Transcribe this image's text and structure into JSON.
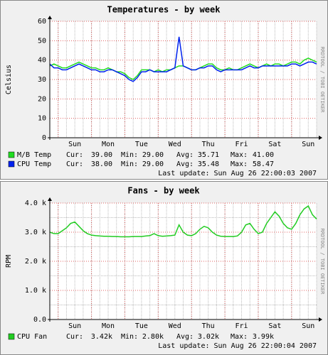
{
  "chart_data": [
    {
      "type": "line",
      "title": "Temperatures - by week",
      "ylabel": "Celsius",
      "side_text": "RRDTOOL / TOBI OETIKER",
      "x": [
        0,
        3,
        6,
        9,
        12,
        15,
        18,
        21,
        24,
        27,
        30,
        33,
        36,
        39,
        42,
        45,
        48,
        51,
        54,
        57,
        60,
        63,
        66,
        69,
        72,
        75,
        78,
        81,
        84,
        87,
        90,
        93,
        96,
        99,
        102,
        105,
        108,
        111,
        114,
        117,
        120,
        123,
        126,
        129,
        132,
        135,
        138,
        141,
        144,
        147,
        150,
        153,
        156,
        159,
        162,
        165,
        168,
        171,
        174,
        177,
        180,
        183,
        186,
        189,
        192
      ],
      "xlim": [
        0,
        192
      ],
      "xticks": [
        {
          "value": 18,
          "label": "Sun"
        },
        {
          "value": 42,
          "label": "Mon"
        },
        {
          "value": 66,
          "label": "Tue"
        },
        {
          "value": 90,
          "label": "Wed"
        },
        {
          "value": 114,
          "label": "Thu"
        },
        {
          "value": 138,
          "label": "Fri"
        },
        {
          "value": 162,
          "label": "Sat"
        },
        {
          "value": 186,
          "label": "Sun"
        }
      ],
      "xgrid": [
        6,
        30,
        54,
        78,
        102,
        126,
        150,
        174
      ],
      "ylim": [
        0,
        60
      ],
      "yticks": [
        0,
        10,
        20,
        30,
        40,
        50,
        60
      ],
      "yminor": false,
      "series": [
        {
          "name": "M/B Temp",
          "color": "#22dd22",
          "values": [
            37,
            38,
            37,
            36,
            36,
            37,
            38,
            39,
            38,
            37,
            36,
            36,
            35,
            35,
            36,
            35,
            34,
            34,
            33,
            31,
            30,
            32,
            35,
            35,
            35,
            34,
            35,
            34,
            35,
            35,
            36,
            37,
            37,
            36,
            35,
            35,
            36,
            37,
            38,
            38,
            36,
            35,
            35,
            36,
            35,
            35,
            36,
            37,
            38,
            37,
            36,
            37,
            38,
            37,
            38,
            38,
            37,
            38,
            39,
            39,
            38,
            40,
            41,
            40,
            39
          ],
          "stats": [
            {
              "label": "Cur:",
              "value": "39.00"
            },
            {
              "label": "Min:",
              "value": "29.00"
            },
            {
              "label": "Avg:",
              "value": "35.71"
            },
            {
              "label": "Max:",
              "value": "41.00"
            }
          ]
        },
        {
          "name": "CPU Temp",
          "color": "#0022ee",
          "values": [
            38,
            36,
            36,
            35,
            35,
            36,
            37,
            38,
            37,
            36,
            35,
            35,
            34,
            34,
            35,
            35,
            34,
            33,
            32,
            30,
            29,
            31,
            34,
            34,
            35,
            34,
            34,
            34,
            34,
            35,
            36,
            52,
            37,
            36,
            35,
            35,
            36,
            36,
            37,
            37,
            35,
            34,
            35,
            35,
            35,
            35,
            35,
            36,
            37,
            36,
            36,
            37,
            37,
            37,
            37,
            37,
            37,
            37,
            38,
            38,
            37,
            38,
            39,
            39,
            38
          ],
          "stats": [
            {
              "label": "Cur:",
              "value": "38.00"
            },
            {
              "label": "Min:",
              "value": "29.00"
            },
            {
              "label": "Avg:",
              "value": "35.48"
            },
            {
              "label": "Max:",
              "value": "58.47"
            }
          ]
        }
      ],
      "last_update": "Last update: Sun Aug 26 22:00:03 2007"
    },
    {
      "type": "line",
      "title": "Fans - by week",
      "ylabel": "RPM",
      "side_text": "RRDTOOL / TOBI OETIKER",
      "x": [
        0,
        3,
        6,
        9,
        12,
        15,
        18,
        21,
        24,
        27,
        30,
        33,
        36,
        39,
        42,
        45,
        48,
        51,
        54,
        57,
        60,
        63,
        66,
        69,
        72,
        75,
        78,
        81,
        84,
        87,
        90,
        93,
        96,
        99,
        102,
        105,
        108,
        111,
        114,
        117,
        120,
        123,
        126,
        129,
        132,
        135,
        138,
        141,
        144,
        147,
        150,
        153,
        156,
        159,
        162,
        165,
        168,
        171,
        174,
        177,
        180,
        183,
        186,
        189,
        192
      ],
      "xlim": [
        0,
        192
      ],
      "xticks": [
        {
          "value": 18,
          "label": "Sun"
        },
        {
          "value": 42,
          "label": "Mon"
        },
        {
          "value": 66,
          "label": "Tue"
        },
        {
          "value": 90,
          "label": "Wed"
        },
        {
          "value": 114,
          "label": "Thu"
        },
        {
          "value": 138,
          "label": "Fri"
        },
        {
          "value": 162,
          "label": "Sat"
        },
        {
          "value": 186,
          "label": "Sun"
        }
      ],
      "xgrid": [
        6,
        30,
        54,
        78,
        102,
        126,
        150,
        174
      ],
      "ylim": [
        0,
        4000
      ],
      "yticks": [
        {
          "value": 0,
          "label": "0.0"
        },
        {
          "value": 1000,
          "label": "1.0 k"
        },
        {
          "value": 2000,
          "label": "2.0 k"
        },
        {
          "value": 3000,
          "label": "3.0 k"
        },
        {
          "value": 4000,
          "label": "4.0 k"
        }
      ],
      "yminor": true,
      "series": [
        {
          "name": "CPU Fan",
          "color": "#22cc22",
          "values": [
            3000,
            2950,
            2950,
            3050,
            3150,
            3300,
            3350,
            3200,
            3050,
            2950,
            2900,
            2880,
            2870,
            2860,
            2860,
            2850,
            2850,
            2840,
            2840,
            2840,
            2850,
            2850,
            2850,
            2870,
            2880,
            2950,
            2880,
            2860,
            2870,
            2880,
            2900,
            3250,
            3000,
            2900,
            2880,
            2950,
            3100,
            3200,
            3150,
            3000,
            2900,
            2860,
            2850,
            2850,
            2850,
            2870,
            3000,
            3250,
            3300,
            3100,
            2950,
            3000,
            3300,
            3500,
            3700,
            3550,
            3300,
            3150,
            3100,
            3300,
            3600,
            3800,
            3900,
            3600,
            3450
          ],
          "stats": [
            {
              "label": "Cur:",
              "value": "3.42k"
            },
            {
              "label": "Min:",
              "value": "2.80k"
            },
            {
              "label": "Avg:",
              "value": "3.02k"
            },
            {
              "label": "Max:",
              "value": "3.99k"
            }
          ]
        }
      ],
      "last_update": "Last update: Sun Aug 26 22:00:04 2007"
    }
  ]
}
